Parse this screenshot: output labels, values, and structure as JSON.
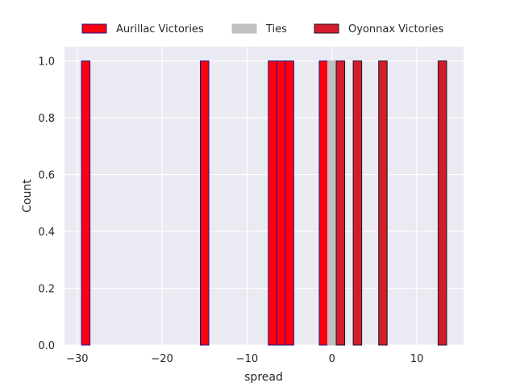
{
  "chart_data": {
    "type": "bar",
    "title": "",
    "xlabel": "spread",
    "ylabel": "Count",
    "xlim": [
      -31.5,
      15.5
    ],
    "ylim": [
      0,
      1.05
    ],
    "grid": true,
    "legend_position": "top",
    "bin_width": 1,
    "x_ticks": [
      -30,
      -20,
      -10,
      0,
      10
    ],
    "x_tick_labels": [
      "−30",
      "−20",
      "−10",
      "0",
      "10"
    ],
    "y_ticks": [
      0,
      0.2,
      0.4,
      0.6,
      0.8,
      1.0
    ],
    "y_tick_labels": [
      "0.0",
      "0.2",
      "0.4",
      "0.6",
      "0.8",
      "1.0"
    ],
    "series": [
      {
        "name": "Aurillac Victories",
        "color": "#ff0010",
        "edge": "#1a1a8c",
        "x": [
          -29,
          -15,
          -7,
          -6,
          -5,
          -1
        ],
        "values": [
          1,
          1,
          1,
          1,
          1,
          1
        ]
      },
      {
        "name": "Ties",
        "color": "#c0c0c0",
        "edge": "#c0c0c0",
        "x": [
          0
        ],
        "values": [
          1
        ]
      },
      {
        "name": "Oyonnax Victories",
        "color": "#d41c2c",
        "edge": "#1a1a1a",
        "x": [
          1,
          3,
          6,
          13
        ],
        "values": [
          1,
          1,
          1,
          1
        ]
      }
    ]
  }
}
